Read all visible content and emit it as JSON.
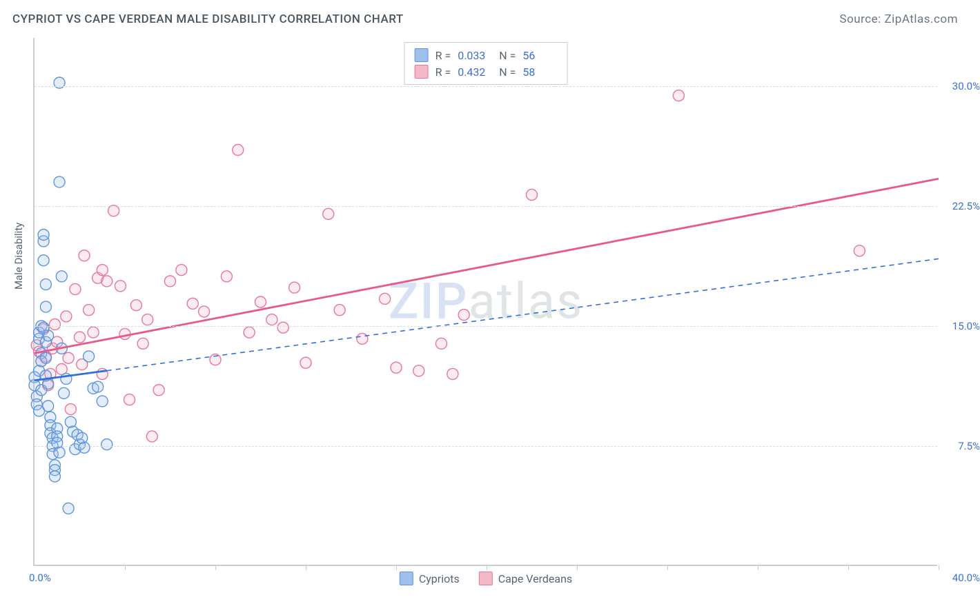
{
  "header": {
    "title": "CYPRIOT VS CAPE VERDEAN MALE DISABILITY CORRELATION CHART",
    "source_prefix": "Source: ",
    "source_name": "ZipAtlas.com"
  },
  "chart": {
    "type": "scatter",
    "ylabel": "Male Disability",
    "xlim": [
      0,
      40
    ],
    "ylim": [
      0,
      33
    ],
    "x_start_label": "0.0%",
    "x_end_label": "40.0%",
    "y_ticks": [
      7.5,
      15.0,
      22.5,
      30.0
    ],
    "y_tick_labels": [
      "7.5%",
      "15.0%",
      "22.5%",
      "30.0%"
    ],
    "x_minor_ticks": [
      4,
      8,
      12,
      16,
      20,
      24,
      28,
      32,
      36,
      40
    ],
    "grid_color": "#d8dce0",
    "axis_color": "#c9ced3",
    "background_color": "#ffffff",
    "tick_label_color": "#3b6fd6",
    "axis_label_color": "#5a6470",
    "marker_radius": 8,
    "marker_stroke_width": 1.4,
    "marker_fill_opacity": 0.28,
    "line_width_solid": 2.8,
    "line_width_dashed": 1.6,
    "watermark": {
      "zip": "ZIP",
      "atlas": "atlas"
    }
  },
  "legend_top": {
    "rows": [
      {
        "r_label": "R =",
        "r_value": "0.033",
        "n_label": "N =",
        "n_value": "56",
        "swatch_fill": "#9fc0ec",
        "swatch_stroke": "#5f95db"
      },
      {
        "r_label": "R =",
        "r_value": "0.432",
        "n_label": "N =",
        "n_value": "58",
        "swatch_fill": "#f4b8c8",
        "swatch_stroke": "#e6779b"
      }
    ]
  },
  "legend_bottom": {
    "items": [
      {
        "label": "Cypriots",
        "swatch_fill": "#9fc0ec",
        "swatch_stroke": "#5f95db"
      },
      {
        "label": "Cape Verdeans",
        "swatch_fill": "#f4b8c8",
        "swatch_stroke": "#e6779b"
      }
    ]
  },
  "series": {
    "cypriots": {
      "color_stroke": "#5f95db",
      "color_fill": "#9fc0ec",
      "trend": {
        "x1": 0,
        "y1": 11.6,
        "x2": 40,
        "y2": 19.2,
        "style": "solid-then-dashed",
        "solid_until_x": 3.2,
        "color": "#2f6fe0"
      },
      "points": [
        [
          0.0,
          11.8
        ],
        [
          0.0,
          11.3
        ],
        [
          0.1,
          10.6
        ],
        [
          0.1,
          10.1
        ],
        [
          0.2,
          9.7
        ],
        [
          0.2,
          12.2
        ],
        [
          0.2,
          14.2
        ],
        [
          0.2,
          14.6
        ],
        [
          0.3,
          15.0
        ],
        [
          0.3,
          13.3
        ],
        [
          0.3,
          12.8
        ],
        [
          0.3,
          11.0
        ],
        [
          0.4,
          20.3
        ],
        [
          0.4,
          20.7
        ],
        [
          0.4,
          19.1
        ],
        [
          0.5,
          17.6
        ],
        [
          0.5,
          16.2
        ],
        [
          0.5,
          14.0
        ],
        [
          0.5,
          13.0
        ],
        [
          0.6,
          14.4
        ],
        [
          0.6,
          11.4
        ],
        [
          0.6,
          10.0
        ],
        [
          0.7,
          9.3
        ],
        [
          0.7,
          8.8
        ],
        [
          0.7,
          8.3
        ],
        [
          0.8,
          8.0
        ],
        [
          0.8,
          7.5
        ],
        [
          0.8,
          7.0
        ],
        [
          0.9,
          6.3
        ],
        [
          0.9,
          6.0
        ],
        [
          0.9,
          5.6
        ],
        [
          1.0,
          8.6
        ],
        [
          1.0,
          8.1
        ],
        [
          1.0,
          7.7
        ],
        [
          1.1,
          7.1
        ],
        [
          1.1,
          24.0
        ],
        [
          1.1,
          30.2
        ],
        [
          1.2,
          18.1
        ],
        [
          1.2,
          13.6
        ],
        [
          1.3,
          10.8
        ],
        [
          1.4,
          11.7
        ],
        [
          1.5,
          3.6
        ],
        [
          1.6,
          9.0
        ],
        [
          1.7,
          8.4
        ],
        [
          1.8,
          7.3
        ],
        [
          1.9,
          8.2
        ],
        [
          2.0,
          7.6
        ],
        [
          2.1,
          8.0
        ],
        [
          2.2,
          7.4
        ],
        [
          2.4,
          13.1
        ],
        [
          2.6,
          11.1
        ],
        [
          2.8,
          11.2
        ],
        [
          3.2,
          7.6
        ],
        [
          3.0,
          10.3
        ],
        [
          0.4,
          14.9
        ],
        [
          0.5,
          11.9
        ]
      ]
    },
    "capeverdeans": {
      "color_stroke": "#e6779b",
      "color_fill": "#f4b8c8",
      "trend": {
        "x1": 0,
        "y1": 13.3,
        "x2": 40,
        "y2": 24.2,
        "style": "solid",
        "color": "#e85a86"
      },
      "points": [
        [
          0.1,
          13.8
        ],
        [
          0.2,
          13.4
        ],
        [
          0.3,
          12.8
        ],
        [
          0.4,
          14.8
        ],
        [
          0.5,
          13.1
        ],
        [
          0.6,
          11.3
        ],
        [
          0.7,
          12.0
        ],
        [
          0.8,
          13.6
        ],
        [
          0.9,
          15.1
        ],
        [
          1.0,
          14.0
        ],
        [
          1.2,
          12.3
        ],
        [
          1.4,
          15.6
        ],
        [
          1.5,
          13.0
        ],
        [
          1.6,
          9.8
        ],
        [
          1.8,
          17.3
        ],
        [
          2.0,
          14.3
        ],
        [
          2.1,
          12.6
        ],
        [
          2.2,
          19.4
        ],
        [
          2.4,
          16.0
        ],
        [
          2.6,
          14.6
        ],
        [
          2.8,
          18.0
        ],
        [
          3.0,
          18.5
        ],
        [
          3.2,
          17.8
        ],
        [
          3.5,
          22.2
        ],
        [
          3.8,
          17.5
        ],
        [
          4.0,
          14.5
        ],
        [
          4.2,
          10.4
        ],
        [
          4.5,
          16.3
        ],
        [
          4.8,
          13.9
        ],
        [
          5.0,
          15.4
        ],
        [
          5.2,
          8.1
        ],
        [
          5.5,
          11.0
        ],
        [
          6.0,
          17.8
        ],
        [
          6.5,
          18.5
        ],
        [
          7.0,
          16.4
        ],
        [
          7.5,
          15.9
        ],
        [
          8.0,
          12.9
        ],
        [
          8.5,
          18.1
        ],
        [
          9.0,
          26.0
        ],
        [
          9.5,
          14.6
        ],
        [
          10.0,
          16.5
        ],
        [
          10.5,
          15.4
        ],
        [
          11.0,
          14.9
        ],
        [
          11.5,
          17.4
        ],
        [
          12.0,
          12.7
        ],
        [
          13.0,
          22.0
        ],
        [
          13.5,
          16.0
        ],
        [
          14.5,
          14.2
        ],
        [
          15.5,
          16.7
        ],
        [
          16.0,
          12.4
        ],
        [
          17.0,
          12.2
        ],
        [
          18.0,
          13.9
        ],
        [
          18.5,
          12.0
        ],
        [
          19.0,
          15.7
        ],
        [
          22.0,
          23.2
        ],
        [
          28.5,
          29.4
        ],
        [
          36.5,
          19.7
        ],
        [
          3.0,
          12.0
        ]
      ]
    }
  }
}
